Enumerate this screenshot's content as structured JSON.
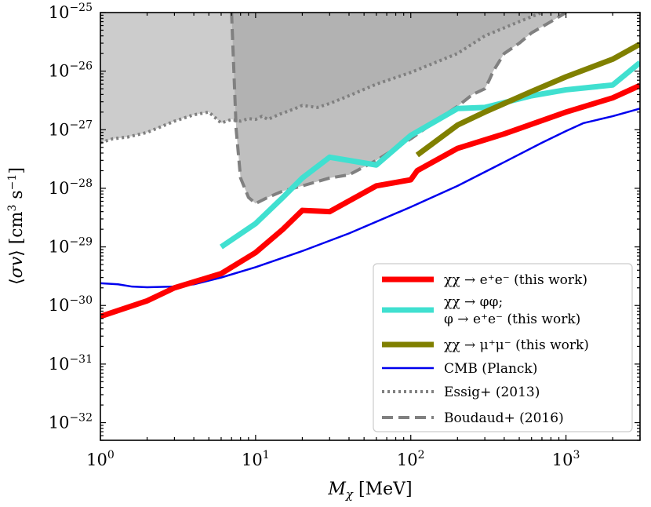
{
  "chart_data": {
    "type": "line",
    "xlabel": "M_χ [MeV]",
    "ylabel": "⟨σv⟩ [cm³ s⁻¹]",
    "xscale": "log",
    "yscale": "log",
    "xlim": [
      1,
      3000
    ],
    "ylim": [
      5e-33,
      1e-25
    ],
    "x_ticks": [
      {
        "value": 1,
        "base": "10",
        "exp": "0"
      },
      {
        "value": 10,
        "base": "10",
        "exp": "1"
      },
      {
        "value": 100,
        "base": "10",
        "exp": "2"
      },
      {
        "value": 1000,
        "base": "10",
        "exp": "3"
      }
    ],
    "y_ticks": [
      {
        "value": 1e-32,
        "base": "10",
        "exp": "−32"
      },
      {
        "value": 1e-31,
        "base": "10",
        "exp": "−31"
      },
      {
        "value": 1e-30,
        "base": "10",
        "exp": "−30"
      },
      {
        "value": 1e-29,
        "base": "10",
        "exp": "−29"
      },
      {
        "value": 1e-28,
        "base": "10",
        "exp": "−28"
      },
      {
        "value": 1e-27,
        "base": "10",
        "exp": "−27"
      },
      {
        "value": 1e-26,
        "base": "10",
        "exp": "−26"
      },
      {
        "value": 1e-25,
        "base": "10",
        "exp": "−25"
      }
    ],
    "grid": false,
    "legend_position": "lower-right",
    "series": [
      {
        "name": "χχ → e⁺e⁻ (this work)",
        "color": "#ff0000",
        "style": "solid",
        "width": 7,
        "x": [
          1,
          2,
          3,
          6,
          10,
          15,
          20,
          30,
          60,
          100,
          110,
          200,
          400,
          1000,
          2000,
          3000
        ],
        "y": [
          6.5e-31,
          1.2e-30,
          2e-30,
          3.5e-30,
          8e-30,
          2e-29,
          4.2e-29,
          4e-29,
          1.1e-28,
          1.4e-28,
          2e-28,
          4.8e-28,
          8.5e-28,
          2e-27,
          3.5e-27,
          5.7e-27
        ]
      },
      {
        "name": "χχ → φφ;\nφ → e⁺e⁻ (this work)",
        "color": "#40e0d0",
        "style": "solid",
        "width": 7,
        "x": [
          6,
          10,
          15,
          20,
          30,
          60,
          100,
          200,
          300,
          600,
          1000,
          2000,
          3000
        ],
        "y": [
          1e-29,
          2.5e-29,
          7e-29,
          1.5e-28,
          3.4e-28,
          2.5e-28,
          8e-28,
          2.3e-27,
          2.4e-27,
          3.8e-27,
          4.8e-27,
          5.8e-27,
          1.4e-26
        ]
      },
      {
        "name": "χχ → μ⁺μ⁻ (this work)",
        "color": "#808000",
        "style": "solid",
        "width": 7,
        "x": [
          110,
          200,
          300,
          600,
          1000,
          2000,
          3000
        ],
        "y": [
          3.7e-28,
          1.2e-27,
          2e-27,
          4.5e-27,
          8e-27,
          1.6e-26,
          2.9e-26
        ]
      },
      {
        "name": "CMB (Planck)",
        "color": "#0000ee",
        "style": "solid",
        "width": 2.5,
        "x": [
          1,
          1.3,
          1.6,
          2,
          3,
          4,
          6,
          10,
          20,
          40,
          100,
          200,
          400,
          700,
          1000,
          1300,
          2000,
          3000
        ],
        "y": [
          2.4e-30,
          2.3e-30,
          2.1e-30,
          2.05e-30,
          2.1e-30,
          2.3e-30,
          3e-30,
          4.5e-30,
          8.5e-30,
          1.7e-29,
          4.8e-29,
          1.1e-28,
          2.8e-28,
          6e-28,
          9.5e-28,
          1.3e-27,
          1.7e-27,
          2.3e-27
        ]
      },
      {
        "name": "Essig+ (2013)",
        "color": "#808080",
        "style": "dotted",
        "width": 4,
        "x": [
          1,
          1.2,
          1.5,
          2,
          3,
          4,
          5,
          5.5,
          6,
          7,
          8,
          9,
          10,
          11,
          12,
          14,
          18,
          20,
          25,
          30,
          40,
          60,
          100,
          200,
          300,
          500,
          700
        ],
        "y": [
          6e-28,
          7e-28,
          7.5e-28,
          9e-28,
          1.4e-27,
          1.8e-27,
          2e-27,
          1.6e-27,
          1.3e-27,
          1.5e-27,
          1.4e-27,
          1.55e-27,
          1.5e-27,
          1.7e-27,
          1.5e-27,
          1.8e-27,
          2.3e-27,
          2.6e-27,
          2.4e-27,
          2.8e-27,
          3.8e-27,
          6e-27,
          9.5e-27,
          2e-26,
          4e-26,
          7e-26,
          1e-25
        ]
      },
      {
        "name": "Boudaud+ (2016)",
        "color": "#808080",
        "style": "dashed",
        "width": 4,
        "x": [
          7,
          7.5,
          8,
          9,
          10,
          12,
          15,
          20,
          30,
          40,
          60,
          100,
          150,
          200,
          250,
          300,
          320,
          340,
          400,
          500,
          600,
          800,
          1000
        ],
        "y": [
          1e-25,
          1e-27,
          1.5e-28,
          7e-29,
          5.5e-29,
          7e-29,
          9e-29,
          1.1e-28,
          1.5e-28,
          1.7e-28,
          3e-28,
          7e-28,
          1.5e-27,
          2.5e-27,
          4e-27,
          5e-27,
          7e-27,
          1e-26,
          2e-26,
          3e-26,
          4.5e-26,
          7e-26,
          1e-25
        ]
      }
    ]
  }
}
